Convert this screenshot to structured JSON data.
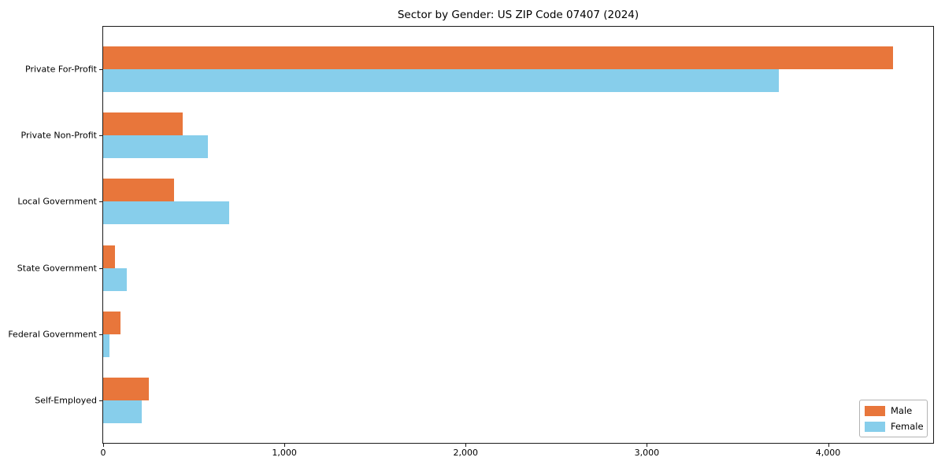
{
  "title": "Sector by Gender: US ZIP Code 07407 (2024)",
  "chart_data": {
    "type": "bar",
    "orientation": "horizontal",
    "title": "Sector by Gender: US ZIP Code 07407 (2024)",
    "categories": [
      "Private For-Profit",
      "Private Non-Profit",
      "Local Government",
      "State Government",
      "Federal Government",
      "Self-Employed"
    ],
    "series": [
      {
        "name": "Male",
        "color": "#e8763b",
        "values": [
          4360,
          440,
          390,
          65,
          95,
          250
        ]
      },
      {
        "name": "Female",
        "color": "#87ceeb",
        "values": [
          3730,
          580,
          695,
          130,
          35,
          215
        ]
      }
    ],
    "xlabel": "",
    "ylabel": "",
    "xlim": [
      0,
      4580
    ],
    "x_ticks": [
      0,
      1000,
      2000,
      3000,
      4000
    ],
    "x_tick_labels": [
      "0",
      "1,000",
      "2,000",
      "3,000",
      "4,000"
    ],
    "grid": false,
    "legend_position": "lower right",
    "background_color": "#ffffff",
    "spine_color": "#1a1a1a"
  },
  "legend": {
    "items": [
      {
        "label": "Male",
        "color": "#e8763b"
      },
      {
        "label": "Female",
        "color": "#87ceeb"
      }
    ]
  }
}
